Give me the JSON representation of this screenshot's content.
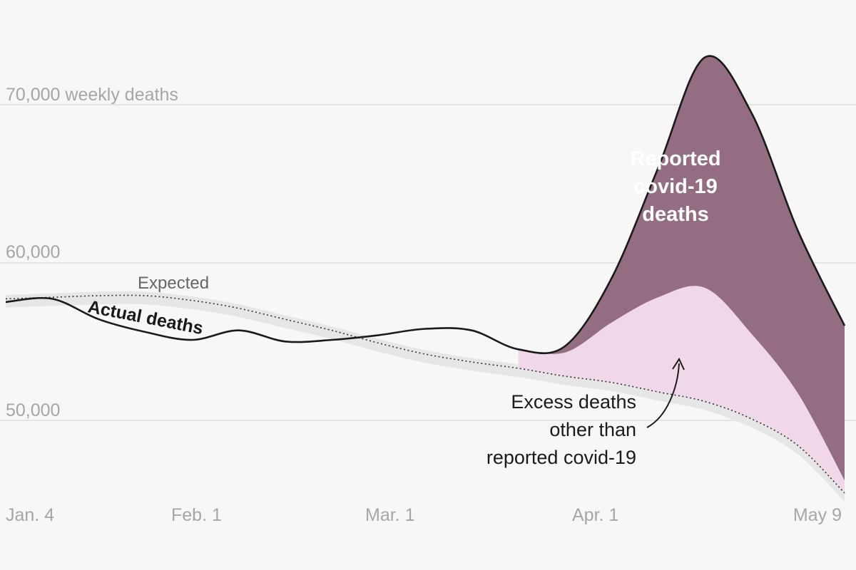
{
  "chart_data": {
    "type": "area",
    "title": "",
    "xlabel": "",
    "ylabel": "",
    "unit": "weekly deaths",
    "x_ticks": [
      "Jan. 4",
      "Feb. 1",
      "Mar. 1",
      "Apr. 1",
      "May 9"
    ],
    "y_ticks": [
      {
        "value": 50000,
        "label": "50,000"
      },
      {
        "value": 60000,
        "label": "60,000"
      },
      {
        "value": 70000,
        "label": "70,000"
      }
    ],
    "ylim": [
      45000,
      74500
    ],
    "grid": true,
    "x": [
      "2020-01-04",
      "2020-01-11",
      "2020-01-18",
      "2020-01-25",
      "2020-02-01",
      "2020-02-08",
      "2020-02-15",
      "2020-02-22",
      "2020-02-29",
      "2020-03-07",
      "2020-03-14",
      "2020-03-21",
      "2020-03-28",
      "2020-04-04",
      "2020-04-11",
      "2020-04-18",
      "2020-04-25",
      "2020-05-02",
      "2020-05-09"
    ],
    "series": [
      {
        "name": "Actual deaths",
        "color": "#1a1a1a",
        "values": [
          57500,
          57700,
          56400,
          55600,
          55100,
          55700,
          55000,
          55100,
          55400,
          55800,
          55700,
          54500,
          54700,
          59000,
          66000,
          73000,
          69500,
          62000,
          56000
        ]
      },
      {
        "name": "Expected",
        "color": "#333333",
        "values": [
          57700,
          57800,
          57900,
          57900,
          57600,
          57100,
          56400,
          55700,
          54900,
          54200,
          53700,
          53300,
          52800,
          52400,
          51800,
          51200,
          50100,
          48400,
          45400
        ]
      },
      {
        "name": "Reported covid-19 deaths",
        "color": "#946d83",
        "values": [
          0,
          0,
          0,
          0,
          0,
          0,
          0,
          0,
          0,
          0,
          0,
          0,
          400,
          2800,
          8200,
          14600,
          14000,
          10300,
          9800
        ]
      },
      {
        "name": "Excess deaths other than reported covid-19",
        "color": "#f0d8e8",
        "values": [
          0,
          0,
          0,
          0,
          0,
          0,
          0,
          0,
          0,
          0,
          0,
          0,
          1500,
          3800,
          6000,
          7200,
          5400,
          3300,
          800
        ]
      }
    ],
    "annotations": {
      "unit_label": "weekly deaths",
      "expected_label": "Expected",
      "actual_label": "Actual deaths",
      "reported_label": [
        "Reported",
        "covid-19",
        "deaths"
      ],
      "excess_label": [
        "Excess deaths",
        "other than",
        "reported covid-19"
      ]
    }
  }
}
